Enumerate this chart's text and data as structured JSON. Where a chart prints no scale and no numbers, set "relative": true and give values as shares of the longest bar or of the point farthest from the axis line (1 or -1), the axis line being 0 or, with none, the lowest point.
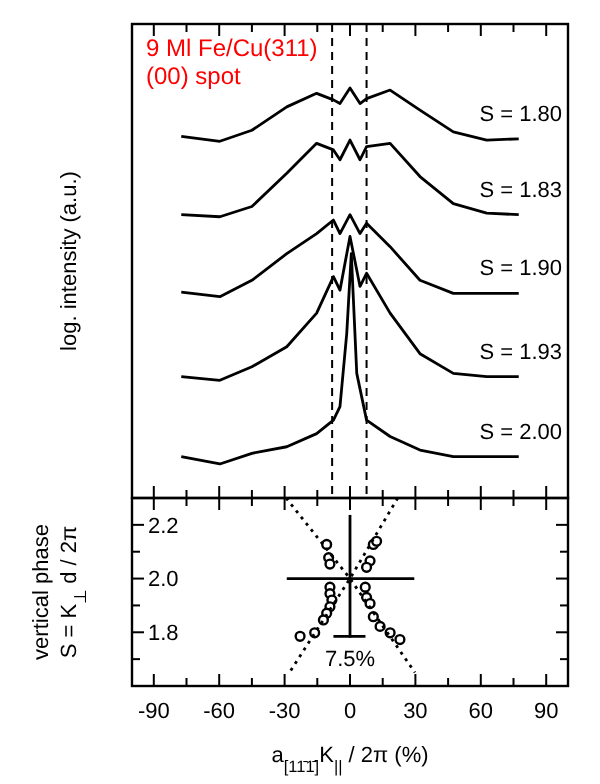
{
  "chart_data": [
    {
      "type": "line",
      "title": "9 Ml Fe/Cu(311)",
      "subtitle": "(00) spot",
      "ylabel": "log. intensity (a.u.)",
      "relative": true,
      "xlim": [
        -100,
        100
      ],
      "tick_labels": false,
      "xticks": [
        -90,
        {
          "value": -75,
          "label": null
        },
        -60,
        {
          "value": -45,
          "label": null
        },
        -30,
        {
          "value": -15,
          "label": null
        },
        0,
        {
          "value": 15,
          "label": null
        },
        30,
        {
          "value": 45,
          "label": null
        },
        60,
        {
          "value": 75,
          "label": null
        },
        90
      ],
      "x": [
        -77.4,
        -59.7,
        -45,
        -29,
        -15.3,
        -7.6,
        -4.6,
        0,
        4.6,
        7.6,
        18.4,
        32.1,
        47.4,
        62.7,
        77.4
      ],
      "series": [
        {
          "name": "S = 1.80",
          "color": "#000000",
          "values": [
            0.882,
            0.87,
            0.897,
            0.954,
            0.987,
            0.971,
            0.962,
            1.0,
            0.962,
            0.974,
            0.995,
            0.946,
            0.893,
            0.873,
            0.876
          ]
        },
        {
          "name": "S = 1.83",
          "color": "#000000",
          "values": [
            0.691,
            0.686,
            0.711,
            0.792,
            0.865,
            0.849,
            0.825,
            0.873,
            0.825,
            0.857,
            0.865,
            0.784,
            0.718,
            0.695,
            0.691
          ]
        },
        {
          "name": "S = 1.90",
          "color": "#000000",
          "values": [
            0.502,
            0.491,
            0.531,
            0.596,
            0.645,
            0.678,
            0.645,
            0.691,
            0.645,
            0.67,
            0.613,
            0.531,
            0.499,
            0.499,
            0.499
          ]
        },
        {
          "name": "S = 1.93",
          "color": "#000000",
          "values": [
            0.296,
            0.287,
            0.32,
            0.369,
            0.451,
            0.54,
            0.507,
            0.638,
            0.516,
            0.548,
            0.451,
            0.352,
            0.304,
            0.296,
            0.296
          ]
        },
        {
          "name": "S = 2.00",
          "color": "#000000",
          "x": [
            -77.4,
            -59.7,
            -45,
            -29,
            -15.3,
            -7.6,
            -4.6,
            -1.5,
            0.6,
            3.1,
            7.6,
            18.4,
            32.1,
            47.4,
            62.7,
            77.4
          ],
          "values": [
            0.101,
            0.083,
            0.109,
            0.125,
            0.157,
            0.19,
            0.223,
            0.401,
            0.596,
            0.304,
            0.19,
            0.15,
            0.117,
            0.101,
            0.101,
            0.101
          ]
        }
      ],
      "ref_lines": [
        {
          "axis": "x",
          "value": -8.2,
          "line_style": "dashed"
        },
        {
          "axis": "x",
          "value": 7.6,
          "line_style": "dashed"
        }
      ]
    },
    {
      "type": "scatter",
      "xlabel": "a$_{[11̄1̄]}$K$_{||}$ / 2π  (%)",
      "ylabel": "vertical phase\nS = K$_{⊥}$ d / 2π",
      "xlim": [
        -100,
        100
      ],
      "ylim": [
        1.6,
        2.3
      ],
      "xticks": [
        -90,
        {
          "value": -75,
          "label": null
        },
        -60,
        {
          "value": -45,
          "label": null
        },
        -30,
        {
          "value": -15,
          "label": null
        },
        0,
        {
          "value": 15,
          "label": null
        },
        30,
        {
          "value": 45,
          "label": null
        },
        60,
        {
          "value": 75,
          "label": null
        },
        90
      ],
      "yticks": [
        {
          "value": 1.7,
          "label": null
        },
        1.8,
        {
          "value": 1.9,
          "label": null
        },
        {
          "value": 2,
          "label": "2.0"
        },
        {
          "value": 2.1,
          "label": null
        },
        2.2
      ],
      "series": [
        {
          "type": "scatter",
          "marker": "circle",
          "color": "#000000",
          "x": [
            -10.7,
            -9.8,
            -9.2,
            -9.2,
            -9.2,
            -8.3,
            -9.2,
            -10.7,
            -12.2,
            -16.2,
            -22.9,
            10.7,
            12.2,
            9.2,
            7.6,
            7.0,
            7.6,
            9.2,
            10.7,
            13.8,
            18.4,
            22.9
          ],
          "values": [
            2.127,
            2.078,
            2.054,
            1.968,
            1.944,
            1.92,
            1.895,
            1.871,
            1.846,
            1.798,
            1.785,
            2.127,
            2.139,
            2.066,
            2.042,
            1.968,
            1.93,
            1.907,
            1.858,
            1.822,
            1.798,
            1.773
          ]
        },
        {
          "type": "line",
          "line_style": "dotted",
          "color": "#000000",
          "x": [
            -29.3,
            0,
            29.8
          ],
          "values": [
            2.3,
            2.0,
            1.65
          ]
        },
        {
          "type": "line",
          "line_style": "dotted",
          "color": "#000000",
          "x": [
            21.9,
            0,
            -27.8
          ],
          "values": [
            2.3,
            2.0,
            1.65
          ]
        },
        {
          "type": "line",
          "line_style": "solid",
          "color": "#000000",
          "x": [
            -29,
            29.5
          ],
          "values": [
            2.0,
            2.0
          ]
        },
        {
          "type": "line",
          "line_style": "solid",
          "color": "#000000",
          "x": [
            0,
            0
          ],
          "values": [
            2.237,
            1.78
          ]
        },
        {
          "type": "line",
          "line_style": "solid",
          "color": "#000000",
          "x": [
            -7.6,
            7.1
          ],
          "values": [
            1.785,
            1.785
          ]
        }
      ],
      "annotations": [
        "7.5%"
      ]
    }
  ]
}
